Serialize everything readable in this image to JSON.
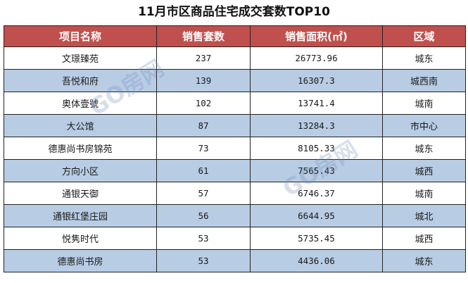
{
  "title": "11月市区商品住宅成交套数TOP10",
  "table": {
    "headers": [
      "项目名称",
      "销售套数",
      "销售面积(㎡)",
      "区域"
    ],
    "rows": [
      {
        "name": "文璟臻苑",
        "units": "237",
        "area": "26773.96",
        "region": "城东"
      },
      {
        "name": "吾悦和府",
        "units": "139",
        "area": "16307.3",
        "region": "城西南"
      },
      {
        "name": "奥体壹號",
        "units": "102",
        "area": "13741.4",
        "region": "城南"
      },
      {
        "name": "大公馆",
        "units": "87",
        "area": "13284.3",
        "region": "市中心"
      },
      {
        "name": "德惠尚书房锦苑",
        "units": "73",
        "area": "8105.33",
        "region": "城东"
      },
      {
        "name": "方向小区",
        "units": "61",
        "area": "7565.43",
        "region": "城西"
      },
      {
        "name": "通银天御",
        "units": "57",
        "area": "6746.37",
        "region": "城南"
      },
      {
        "name": "通银红堡庄园",
        "units": "56",
        "area": "6644.95",
        "region": "城北"
      },
      {
        "name": "悦隽时代",
        "units": "53",
        "area": "5735.45",
        "region": "城西"
      },
      {
        "name": "德惠尚书房",
        "units": "53",
        "area": "4436.06",
        "region": "城东"
      }
    ]
  },
  "watermarks": [
    "GO房网",
    "GO房网"
  ],
  "colors": {
    "header_bg": "#c0504d",
    "header_text": "#ffffff",
    "stripe_bg": "#b8cce4",
    "border": "#222222"
  }
}
